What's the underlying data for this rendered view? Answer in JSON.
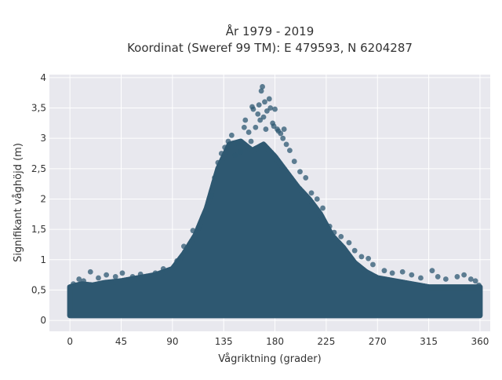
{
  "chart_data": {
    "type": "scatter",
    "title_line1": "År 1979 - 2019",
    "title_line2": "Koordinat (Sweref 99 TM): E 479593, N 6204287",
    "xlabel": "Vågriktning (grader)",
    "ylabel": "Signifikant våghöjd (m)",
    "xlim": [
      -18,
      369
    ],
    "ylim": [
      -0.18,
      4.05
    ],
    "xticks": [
      0,
      45,
      90,
      135,
      180,
      225,
      270,
      315,
      360
    ],
    "xtick_labels": [
      "0",
      "45",
      "90",
      "135",
      "180",
      "225",
      "270",
      "315",
      "360"
    ],
    "yticks": [
      0,
      0.5,
      1,
      1.5,
      2,
      2.5,
      3,
      3.5,
      4
    ],
    "ytick_labels": [
      "0",
      "0,5",
      "1",
      "1,5",
      "2",
      "2,5",
      "3",
      "3,5",
      "4"
    ],
    "grid": true,
    "marker_color": "#2e5871",
    "envelope": {
      "direction": [
        0,
        10,
        20,
        30,
        45,
        60,
        75,
        90,
        100,
        110,
        120,
        130,
        140,
        150,
        160,
        170,
        180,
        190,
        200,
        210,
        220,
        230,
        240,
        250,
        260,
        270,
        285,
        300,
        315,
        330,
        345,
        360
      ],
      "max_height": [
        0.55,
        0.6,
        0.58,
        0.62,
        0.65,
        0.7,
        0.75,
        0.85,
        1.1,
        1.4,
        1.85,
        2.5,
        2.9,
        2.95,
        2.8,
        2.9,
        2.7,
        2.45,
        2.2,
        2.0,
        1.75,
        1.4,
        1.2,
        0.95,
        0.8,
        0.7,
        0.65,
        0.6,
        0.55,
        0.55,
        0.55,
        0.55
      ]
    },
    "outliers": [
      {
        "x": 3,
        "y": 0.6
      },
      {
        "x": 8,
        "y": 0.68
      },
      {
        "x": 12,
        "y": 0.65
      },
      {
        "x": 18,
        "y": 0.8
      },
      {
        "x": 25,
        "y": 0.7
      },
      {
        "x": 32,
        "y": 0.75
      },
      {
        "x": 40,
        "y": 0.72
      },
      {
        "x": 46,
        "y": 0.78
      },
      {
        "x": 55,
        "y": 0.72
      },
      {
        "x": 62,
        "y": 0.76
      },
      {
        "x": 75,
        "y": 0.78
      },
      {
        "x": 82,
        "y": 0.85
      },
      {
        "x": 94,
        "y": 0.98
      },
      {
        "x": 98,
        "y": 1.05
      },
      {
        "x": 100,
        "y": 1.22
      },
      {
        "x": 103,
        "y": 1.14
      },
      {
        "x": 108,
        "y": 1.48
      },
      {
        "x": 113,
        "y": 1.52
      },
      {
        "x": 118,
        "y": 1.72
      },
      {
        "x": 124,
        "y": 2.05
      },
      {
        "x": 127,
        "y": 2.35
      },
      {
        "x": 130,
        "y": 2.6
      },
      {
        "x": 133,
        "y": 2.75
      },
      {
        "x": 136,
        "y": 2.85
      },
      {
        "x": 139,
        "y": 2.95
      },
      {
        "x": 142,
        "y": 3.05
      },
      {
        "x": 145,
        "y": 2.72
      },
      {
        "x": 147,
        "y": 2.92
      },
      {
        "x": 150,
        "y": 2.78
      },
      {
        "x": 153,
        "y": 3.18
      },
      {
        "x": 154,
        "y": 3.3
      },
      {
        "x": 157,
        "y": 3.1
      },
      {
        "x": 159,
        "y": 2.95
      },
      {
        "x": 160,
        "y": 3.52
      },
      {
        "x": 161,
        "y": 3.48
      },
      {
        "x": 163,
        "y": 3.18
      },
      {
        "x": 165,
        "y": 3.4
      },
      {
        "x": 166,
        "y": 3.55
      },
      {
        "x": 167,
        "y": 3.3
      },
      {
        "x": 168,
        "y": 3.78
      },
      {
        "x": 169,
        "y": 3.85
      },
      {
        "x": 170,
        "y": 3.35
      },
      {
        "x": 171,
        "y": 3.6
      },
      {
        "x": 172,
        "y": 3.15
      },
      {
        "x": 173,
        "y": 3.45
      },
      {
        "x": 175,
        "y": 3.65
      },
      {
        "x": 176,
        "y": 3.5
      },
      {
        "x": 178,
        "y": 3.25
      },
      {
        "x": 179,
        "y": 3.2
      },
      {
        "x": 180,
        "y": 3.48
      },
      {
        "x": 182,
        "y": 3.15
      },
      {
        "x": 183,
        "y": 3.12
      },
      {
        "x": 185,
        "y": 3.08
      },
      {
        "x": 187,
        "y": 3.0
      },
      {
        "x": 188,
        "y": 3.15
      },
      {
        "x": 190,
        "y": 2.9
      },
      {
        "x": 193,
        "y": 2.8
      },
      {
        "x": 197,
        "y": 2.62
      },
      {
        "x": 202,
        "y": 2.45
      },
      {
        "x": 207,
        "y": 2.35
      },
      {
        "x": 212,
        "y": 2.1
      },
      {
        "x": 217,
        "y": 2.0
      },
      {
        "x": 222,
        "y": 1.85
      },
      {
        "x": 228,
        "y": 1.55
      },
      {
        "x": 232,
        "y": 1.45
      },
      {
        "x": 238,
        "y": 1.38
      },
      {
        "x": 245,
        "y": 1.28
      },
      {
        "x": 250,
        "y": 1.15
      },
      {
        "x": 256,
        "y": 1.05
      },
      {
        "x": 262,
        "y": 1.02
      },
      {
        "x": 266,
        "y": 0.92
      },
      {
        "x": 276,
        "y": 0.82
      },
      {
        "x": 283,
        "y": 0.78
      },
      {
        "x": 292,
        "y": 0.8
      },
      {
        "x": 300,
        "y": 0.75
      },
      {
        "x": 308,
        "y": 0.7
      },
      {
        "x": 318,
        "y": 0.82
      },
      {
        "x": 323,
        "y": 0.72
      },
      {
        "x": 330,
        "y": 0.68
      },
      {
        "x": 340,
        "y": 0.72
      },
      {
        "x": 346,
        "y": 0.75
      },
      {
        "x": 352,
        "y": 0.68
      },
      {
        "x": 356,
        "y": 0.65
      },
      {
        "x": 359,
        "y": 0.58
      }
    ]
  }
}
